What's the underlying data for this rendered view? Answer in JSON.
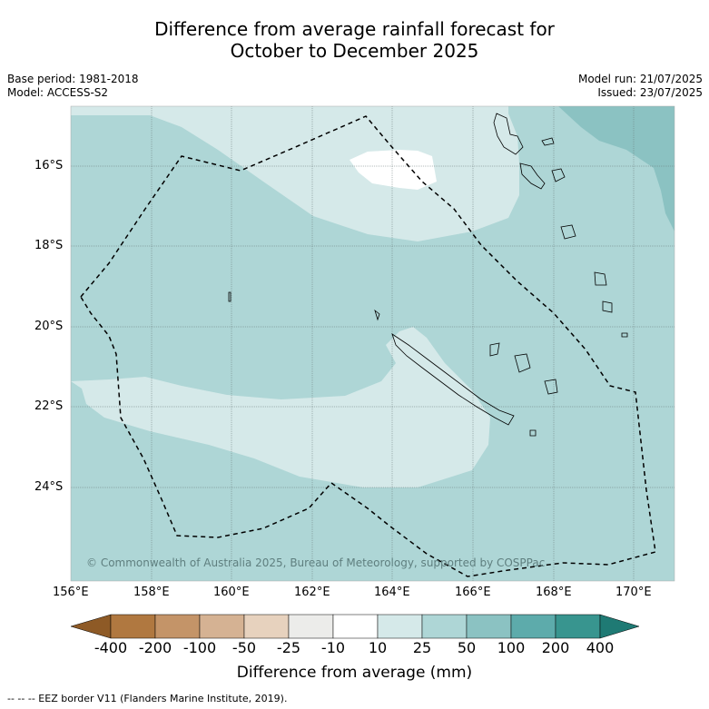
{
  "title_line1": "Difference from average rainfall forecast for",
  "title_line2": "October to December 2025",
  "base_period": "Base period: 1981-2018",
  "model": "Model: ACCESS-S2",
  "model_run": "Model run: 21/07/2025",
  "issued": "Issued: 23/07/2025",
  "lat_labels": [
    "16°S",
    "18°S",
    "20°S",
    "22°S",
    "24°S"
  ],
  "lon_labels": [
    "156°E",
    "158°E",
    "160°E",
    "162°E",
    "164°E",
    "166°E",
    "168°E",
    "170°E"
  ],
  "copyright": "© Commonwealth of Australia 2025, Bureau of Meteorology, supported by COSPPac",
  "colorbar": {
    "tick_labels": [
      "-400",
      "-200",
      "-100",
      "-50",
      "-25",
      "-10",
      "10",
      "25",
      "50",
      "100",
      "200",
      "400"
    ],
    "colors": [
      "#8e5a26",
      "#b07840",
      "#c49468",
      "#d5b293",
      "#e7d2be",
      "#ececea",
      "#ffffff",
      "#d5e9e9",
      "#aed6d6",
      "#8bc2c2",
      "#5dabab",
      "#38958f",
      "#1f7a74"
    ],
    "title": "Difference from average (mm)"
  },
  "map_fill_colors": {
    "base": "#aed6d6",
    "light": "#d5e9e9",
    "white": "#ffffff",
    "dark": "#8bc2c2"
  },
  "footnote": "-- -- -- EEZ border V11 (Flanders Marine Institute, 2019)."
}
